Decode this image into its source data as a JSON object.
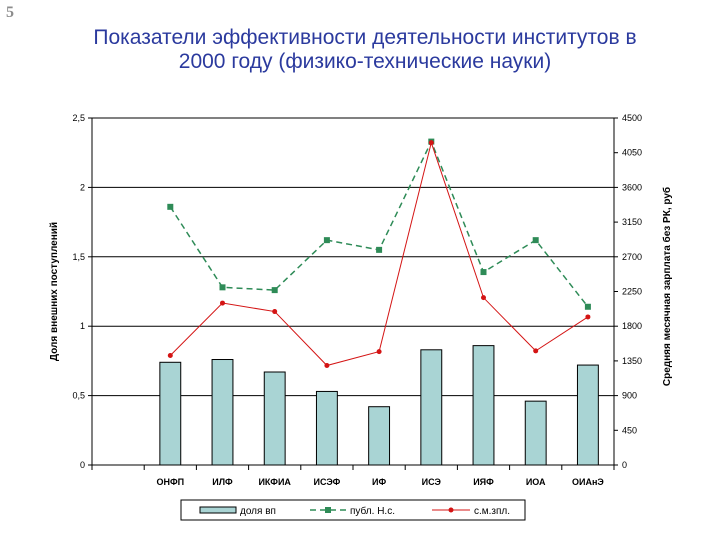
{
  "slide_number": "5",
  "title_lines": [
    "Показатели эффективности деятельности институтов в",
    "2000 году (физико-технические науки)"
  ],
  "colors": {
    "title": "#2b3a9e",
    "bar_fill": "#a9d4d4",
    "bar_stroke": "#000000",
    "line_publ": "#2e8b57",
    "line_salary": "#d41414",
    "grid": "#000000"
  },
  "chart_data": {
    "type": "bar",
    "title": "",
    "categories": [
      "ОНФП",
      "ИЛФ",
      "ИКФИА",
      "ИСЭФ",
      "ИФ",
      "ИСЭ",
      "ИЯФ",
      "ИОА",
      "ОИАнЭ"
    ],
    "n_slots": 10,
    "first_category_slot": 1,
    "ylabel": "Доля внешних поступлений",
    "ylim": [
      0,
      2.5
    ],
    "yticks": [
      "0",
      "0,5",
      "1",
      "1,5",
      "2",
      "2,5"
    ],
    "y2label": "Средняя месячная зарплата без РК, руб",
    "y2lim": [
      0,
      4500
    ],
    "y2ticks": [
      "0",
      "450",
      "900",
      "1350",
      "1800",
      "2250",
      "2700",
      "3150",
      "3600",
      "4050",
      "4500"
    ],
    "grid": true,
    "legend_position": "bottom",
    "series": [
      {
        "name": "доля вп",
        "type": "bar",
        "axis": "left",
        "values": [
          0.74,
          0.76,
          0.67,
          0.53,
          0.42,
          0.83,
          0.86,
          0.46,
          0.72
        ]
      },
      {
        "name": "публ. Н.с.",
        "type": "line",
        "axis": "left",
        "style": "dashed",
        "marker": "square",
        "values": [
          1.86,
          1.28,
          1.26,
          1.62,
          1.55,
          2.33,
          1.39,
          1.62,
          1.14
        ]
      },
      {
        "name": "с.м.зпл.",
        "type": "line",
        "axis": "right",
        "style": "solid",
        "marker": "circle",
        "values": [
          1420,
          2100,
          1990,
          1290,
          1470,
          4180,
          2170,
          1480,
          1920
        ]
      }
    ]
  }
}
